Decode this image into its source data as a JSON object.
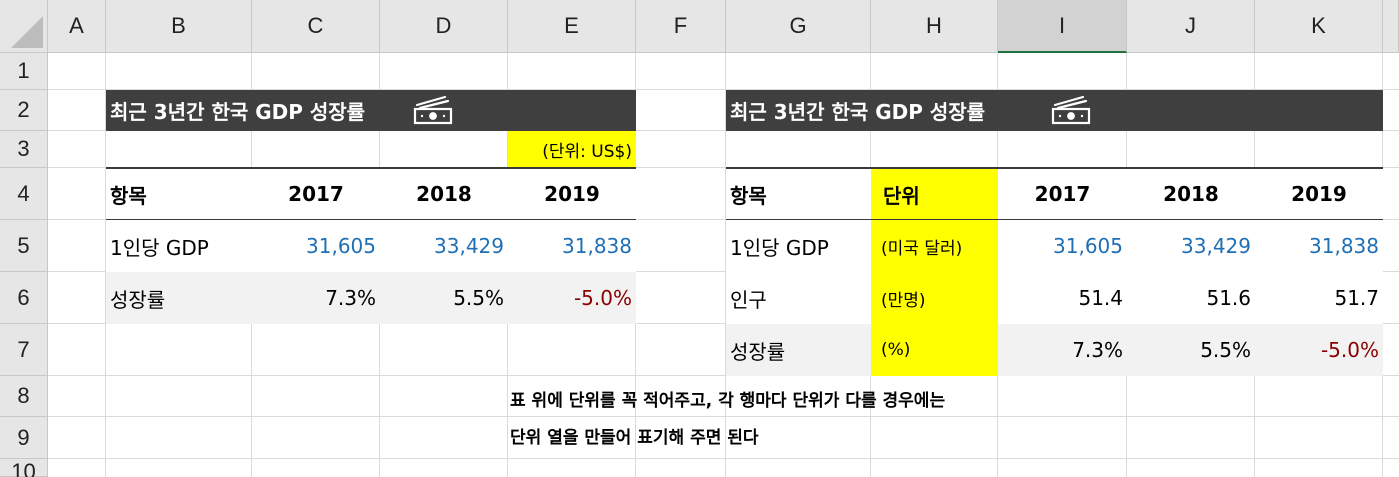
{
  "columns": [
    "A",
    "B",
    "C",
    "D",
    "E",
    "F",
    "G",
    "H",
    "I",
    "J",
    "K"
  ],
  "rows": [
    "1",
    "2",
    "3",
    "4",
    "5",
    "6",
    "7",
    "8",
    "9",
    "10"
  ],
  "table1": {
    "title": "최근 3년간 한국 GDP 성장률",
    "icon": "money-bill-icon",
    "unit_note": "(단위: US$)",
    "headers": [
      "항목",
      "2017",
      "2018",
      "2019"
    ],
    "rows": [
      {
        "label": "1인당 GDP",
        "values": [
          "31,605",
          "33,429",
          "31,838"
        ]
      },
      {
        "label": "성장률",
        "values": [
          "7.3%",
          "5.5%",
          "-5.0%"
        ]
      }
    ]
  },
  "table2": {
    "title": "최근 3년간 한국 GDP 성장률",
    "icon": "money-bill-icon",
    "headers": [
      "항목",
      "단위",
      "2017",
      "2018",
      "2019"
    ],
    "rows": [
      {
        "label": "1인당 GDP",
        "unit": "(미국 달러)",
        "values": [
          "31,605",
          "33,429",
          "31,838"
        ]
      },
      {
        "label": "인구",
        "unit": "(만명)",
        "values": [
          "51.4",
          "51.6",
          "51.7"
        ]
      },
      {
        "label": "성장률",
        "unit": "(%)",
        "values": [
          "7.3%",
          "5.5%",
          "-5.0%"
        ]
      }
    ]
  },
  "note": {
    "line1": "표 위에 단위를 꼭 적어주고, 각 행마다 단위가 다를 경우에는",
    "line2": "단위 열을 만들어 표기해 주면 된다"
  },
  "colors": {
    "header_bg": "#3f3f3f",
    "highlight": "#ffff00",
    "positive": "#1f6fb5",
    "negative": "#8b0000",
    "band": "#f2f2f2"
  }
}
